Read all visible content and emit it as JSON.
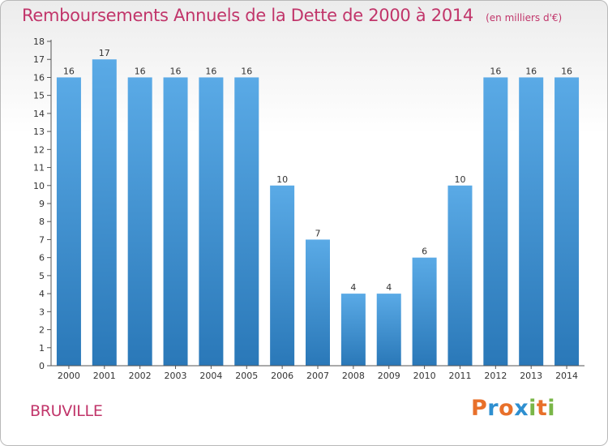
{
  "chart_data": {
    "type": "bar",
    "title": "Remboursements Annuels de la Dette de 2000 à 2014",
    "subtitle": "(en milliers d'€)",
    "categories": [
      "2000",
      "2001",
      "2002",
      "2003",
      "2004",
      "2005",
      "2006",
      "2007",
      "2008",
      "2009",
      "2010",
      "2011",
      "2012",
      "2013",
      "2014"
    ],
    "values": [
      16,
      17,
      16,
      16,
      16,
      16,
      10,
      7,
      4,
      4,
      6,
      10,
      16,
      16,
      16
    ],
    "yticks": [
      "0",
      "1",
      "2",
      "3",
      "4",
      "5",
      "6",
      "7",
      "8",
      "9",
      "10",
      "11",
      "12",
      "13",
      "14",
      "15",
      "16",
      "17",
      "18"
    ],
    "ylim": [
      0,
      18
    ],
    "xlabel": "",
    "ylabel": "",
    "grid": false,
    "colors": {
      "bar_light": "#5aaae6",
      "bar_dark": "#2a78b8",
      "text": "#333333",
      "title": "#c1356a"
    }
  },
  "footer": {
    "commune": "BRUVILLE",
    "brand_letters": [
      "P",
      "r",
      "o",
      "x",
      "i",
      "t",
      "i"
    ],
    "brand_colors": [
      "#e8702a",
      "#2e8fd0",
      "#e8702a",
      "#2e8fd0",
      "#7ab648",
      "#e8702a",
      "#7ab648"
    ]
  }
}
